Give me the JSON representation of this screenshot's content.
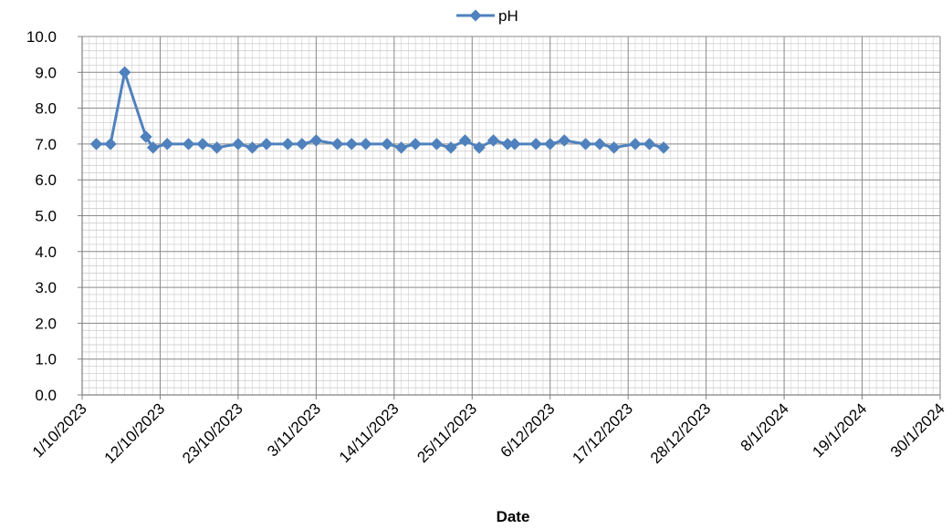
{
  "chart_data": {
    "type": "line",
    "title": "",
    "xlabel": "Date",
    "ylabel": "",
    "xlim": [
      "2023-10-01",
      "2024-01-30"
    ],
    "ylim": [
      0,
      10
    ],
    "y_major_step": 1,
    "y_minor_step": 0.2,
    "x_major_step_days": 11,
    "x_minor_step_days": 1,
    "grid": true,
    "legend": "top-center",
    "x_tick_labels": [
      "1/10/2023",
      "12/10/2023",
      "23/10/2023",
      "3/11/2023",
      "14/11/2023",
      "25/11/2023",
      "6/12/2023",
      "17/12/2023",
      "28/12/2023",
      "8/1/2024",
      "19/1/2024",
      "30/1/2024"
    ],
    "y_tick_labels": [
      "0.0",
      "1.0",
      "2.0",
      "3.0",
      "4.0",
      "5.0",
      "6.0",
      "7.0",
      "8.0",
      "9.0",
      "10.0"
    ],
    "series": [
      {
        "name": "pH",
        "color": "#4f81bd",
        "marker": "diamond",
        "x": [
          "2023-10-03",
          "2023-10-05",
          "2023-10-07",
          "2023-10-10",
          "2023-10-11",
          "2023-10-13",
          "2023-10-16",
          "2023-10-18",
          "2023-10-20",
          "2023-10-23",
          "2023-10-25",
          "2023-10-27",
          "2023-10-30",
          "2023-11-01",
          "2023-11-03",
          "2023-11-06",
          "2023-11-08",
          "2023-11-10",
          "2023-11-13",
          "2023-11-15",
          "2023-11-17",
          "2023-11-20",
          "2023-11-22",
          "2023-11-24",
          "2023-11-26",
          "2023-11-28",
          "2023-11-30",
          "2023-12-01",
          "2023-12-04",
          "2023-12-06",
          "2023-12-08",
          "2023-12-11",
          "2023-12-13",
          "2023-12-15",
          "2023-12-18",
          "2023-12-20",
          "2023-12-22"
        ],
        "values": [
          7.0,
          7.0,
          9.0,
          7.2,
          6.9,
          7.0,
          7.0,
          7.0,
          6.9,
          7.0,
          6.9,
          7.0,
          7.0,
          7.0,
          7.1,
          7.0,
          7.0,
          7.0,
          7.0,
          6.9,
          7.0,
          7.0,
          6.9,
          7.1,
          6.9,
          7.1,
          7.0,
          7.0,
          7.0,
          7.0,
          7.1,
          7.0,
          7.0,
          6.9,
          7.0,
          7.0,
          6.9
        ]
      }
    ]
  }
}
